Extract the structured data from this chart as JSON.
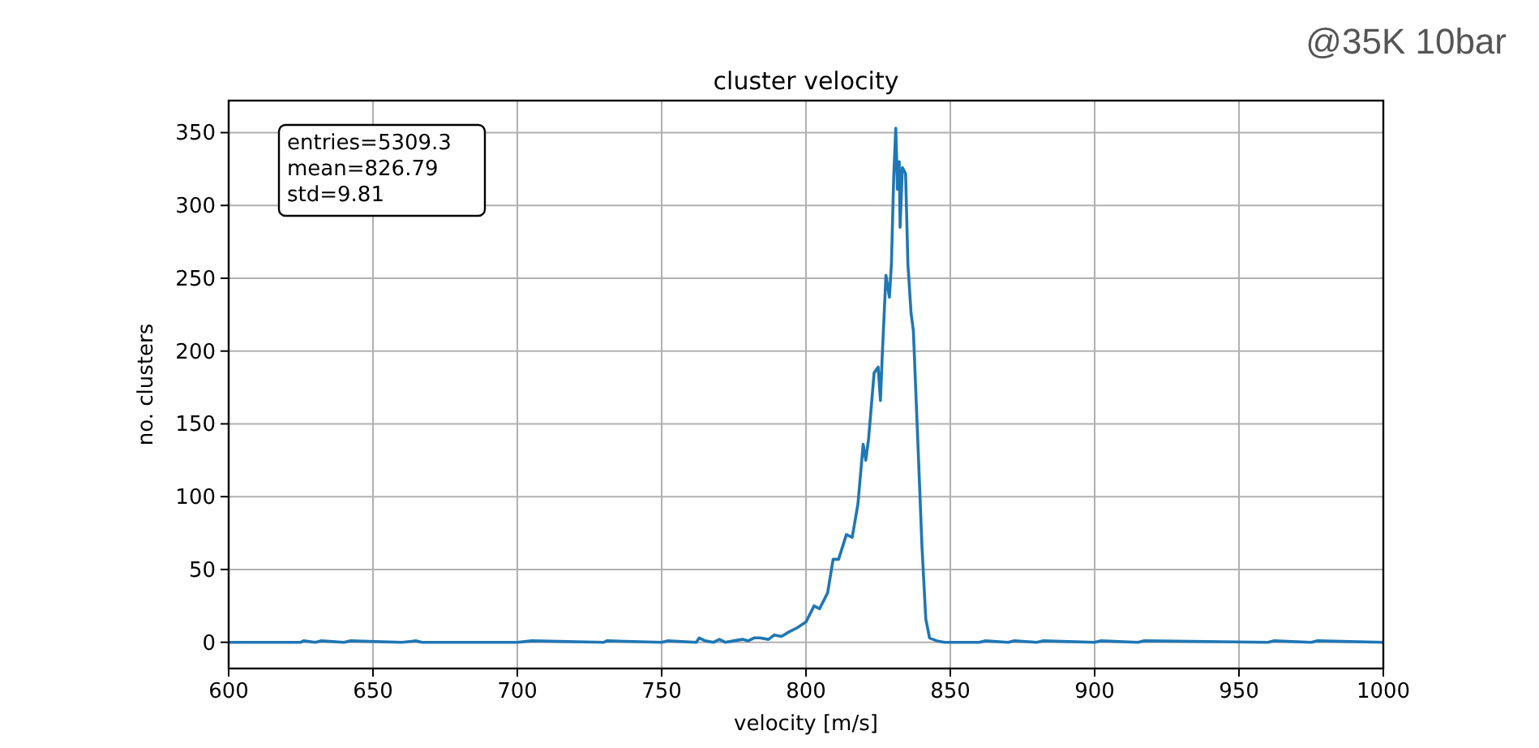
{
  "chart_data": {
    "type": "line",
    "title": "cluster velocity",
    "xlabel": "velocity [m/s]",
    "ylabel": "no. clusters",
    "annotations": [
      "entries=5309.3",
      "mean=826.79",
      "std=9.81",
      "@35K 10bar"
    ],
    "x": [
      600,
      625,
      626,
      630,
      632,
      640,
      642,
      660,
      665,
      667,
      700,
      705,
      730,
      731,
      750,
      752,
      762,
      763,
      765,
      768,
      770,
      772,
      775,
      778,
      780,
      782,
      784,
      787,
      789,
      791.5,
      794,
      797,
      800,
      802.8,
      804.7,
      807.5,
      809.4,
      811.3,
      814,
      816,
      818,
      819.8,
      820.7,
      821.7,
      823.6,
      825,
      825.8,
      826.4,
      827.7,
      828.9,
      829.6,
      830.4,
      831.1,
      831.7,
      832.3,
      832.6,
      833.4,
      834.5,
      835.3,
      836.4,
      837.2,
      838.7,
      840.2,
      841.5,
      842.8,
      845.3,
      848,
      860,
      862,
      870,
      872,
      880,
      882,
      900,
      902,
      915,
      917,
      960,
      962,
      975,
      977,
      1000
    ],
    "series": [
      {
        "color": "#1f77b4",
        "values": [
          0,
          0,
          1,
          0,
          1,
          0,
          1,
          0,
          1,
          0,
          0,
          1,
          0,
          1,
          0,
          1,
          0,
          3,
          1,
          0,
          2,
          0,
          1,
          2,
          1,
          3,
          3,
          2,
          5,
          4,
          7,
          10,
          14,
          25,
          23,
          34,
          57,
          57,
          74,
          72,
          95,
          136,
          125,
          140,
          185,
          189,
          166,
          196,
          252,
          237,
          260,
          320,
          353,
          311,
          330,
          285,
          326,
          322,
          260,
          226,
          214,
          140,
          65,
          16,
          3,
          1,
          0,
          0,
          1,
          0,
          1,
          0,
          1,
          0,
          1,
          0,
          1,
          0,
          1,
          0,
          1,
          0
        ]
      }
    ],
    "xlim": [
      600,
      1000
    ],
    "ylim": [
      -18,
      372
    ],
    "xticks": [
      600,
      650,
      700,
      750,
      800,
      850,
      900,
      950,
      1000
    ],
    "yticks": [
      0,
      50,
      100,
      150,
      200,
      250,
      300,
      350
    ],
    "grid": true,
    "marker": "none",
    "line_style": "solid"
  }
}
